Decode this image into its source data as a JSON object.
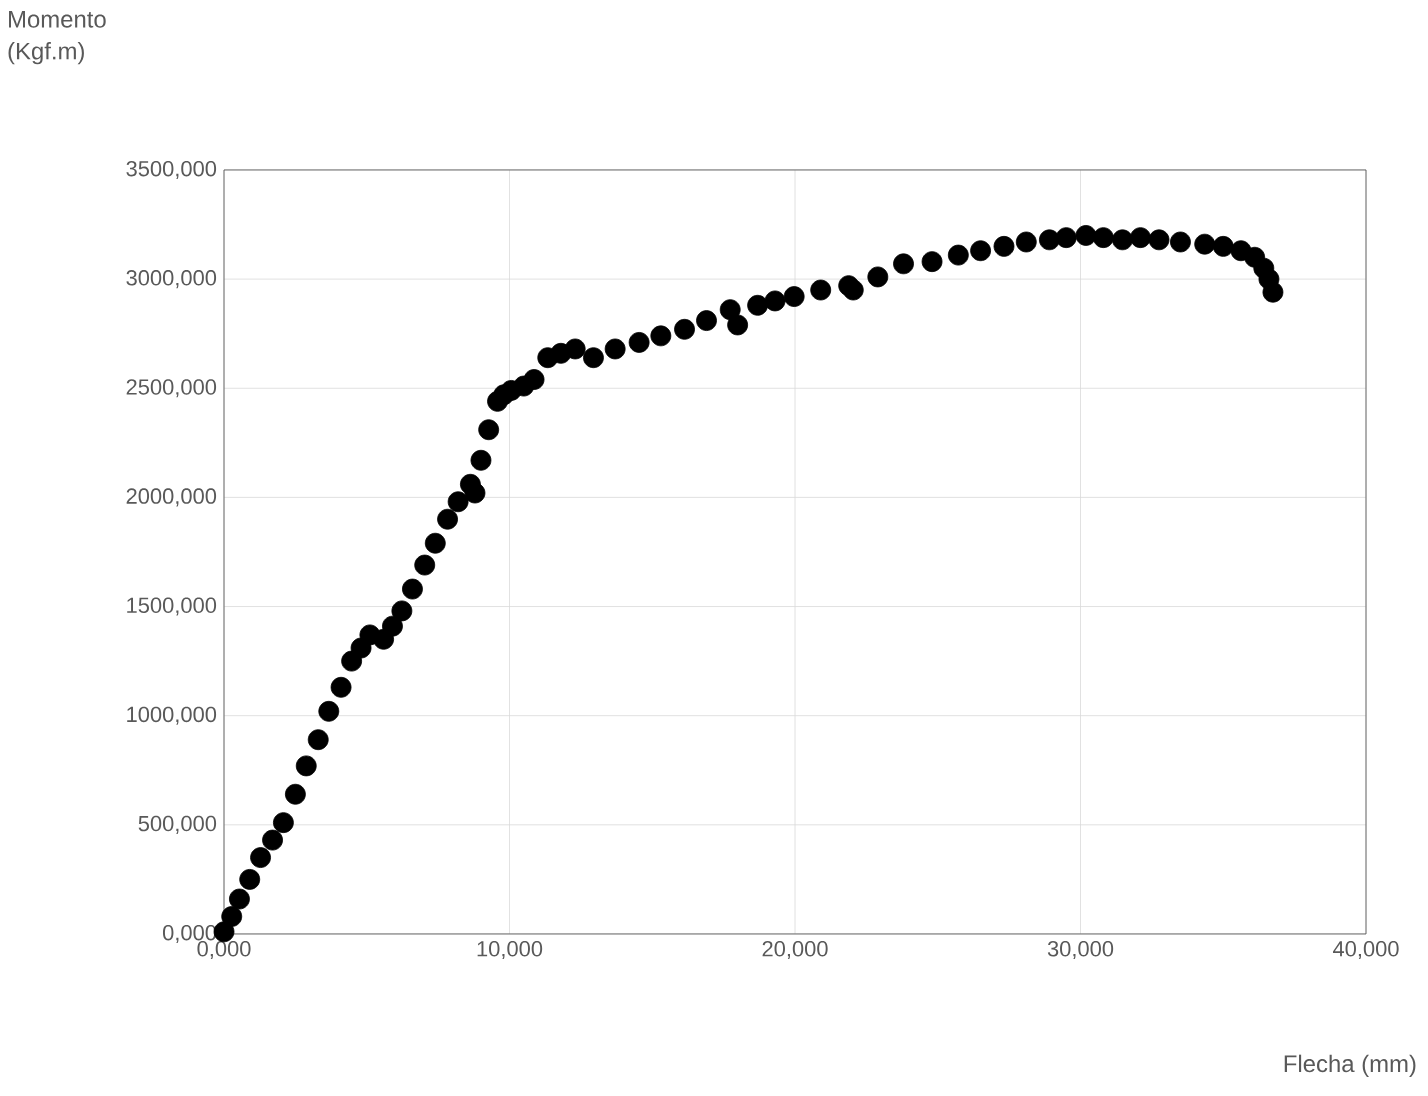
{
  "chart_data": {
    "type": "scatter",
    "xlabel": "Flecha (mm)",
    "ylabel": "Momento (Kgf.m)",
    "x": [
      0,
      0.27,
      0.54,
      0.9,
      1.28,
      1.7,
      2.08,
      2.5,
      2.88,
      3.3,
      3.67,
      4.1,
      4.47,
      4.8,
      5.11,
      5.59,
      5.9,
      6.23,
      6.6,
      7.03,
      7.4,
      7.83,
      8.2,
      8.63,
      8.79,
      9.0,
      9.27,
      9.58,
      9.8,
      10.06,
      10.5,
      10.86,
      11.34,
      11.8,
      12.3,
      12.94,
      13.7,
      14.54,
      15.3,
      16.13,
      16.9,
      17.73,
      17.99,
      18.69,
      19.3,
      19.97,
      20.9,
      21.88,
      22.04,
      22.9,
      23.8,
      24.8,
      25.72,
      26.5,
      27.32,
      28.1,
      28.91,
      29.5,
      30.19,
      30.8,
      31.47,
      32.1,
      32.75,
      33.5,
      34.35,
      35.0,
      35.62,
      36.1,
      36.42,
      36.6,
      36.74
    ],
    "series": [
      {
        "color": "#000000",
        "values": [
          10,
          80,
          160,
          250,
          350,
          430,
          510,
          640,
          770,
          890,
          1020,
          1130,
          1250,
          1310,
          1370,
          1350,
          1410,
          1480,
          1580,
          1690,
          1790,
          1900,
          1980,
          2060,
          2020,
          2170,
          2310,
          2440,
          2470,
          2490,
          2510,
          2540,
          2640,
          2660,
          2680,
          2640,
          2680,
          2710,
          2740,
          2770,
          2810,
          2860,
          2790,
          2880,
          2900,
          2920,
          2950,
          2970,
          2950,
          3010,
          3070,
          3080,
          3110,
          3130,
          3150,
          3170,
          3180,
          3190,
          3200,
          3190,
          3180,
          3190,
          3180,
          3170,
          3160,
          3150,
          3130,
          3100,
          3050,
          3000,
          2940
        ]
      }
    ],
    "xlim": [
      0,
      40
    ],
    "ylim": [
      0,
      3500
    ],
    "xticks": [
      {
        "value": 0,
        "label": "0,000"
      },
      {
        "value": 10,
        "label": "10,000"
      },
      {
        "value": 20,
        "label": "20,000"
      },
      {
        "value": 30,
        "label": "30,000"
      },
      {
        "value": 40,
        "label": "40,000"
      }
    ],
    "yticks": [
      {
        "value": 0,
        "label": "0,000"
      },
      {
        "value": 500,
        "label": "500,000"
      },
      {
        "value": 1000,
        "label": "1000,000"
      },
      {
        "value": 1500,
        "label": "1500,000"
      },
      {
        "value": 2000,
        "label": "2000,000"
      },
      {
        "value": 2500,
        "label": "2500,000"
      },
      {
        "value": 3000,
        "label": "3000,000"
      },
      {
        "value": 3500,
        "label": "3500,000"
      }
    ],
    "grid": true,
    "legend": false,
    "marker": "circle"
  }
}
